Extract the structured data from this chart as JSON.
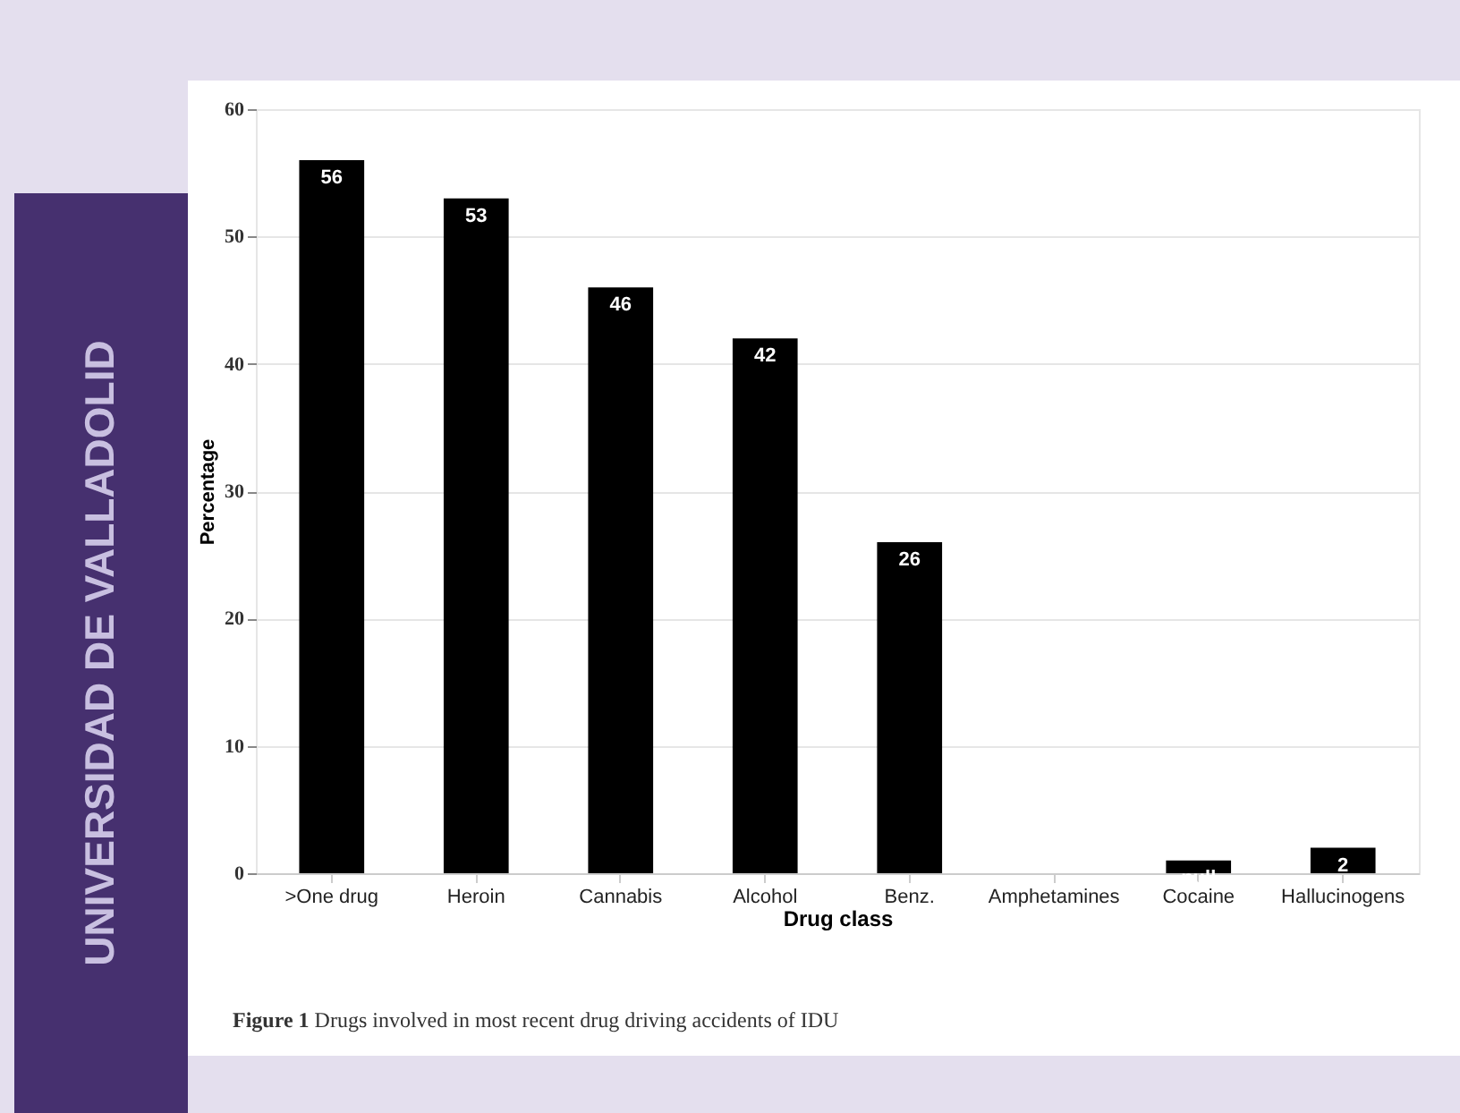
{
  "chart_data": {
    "type": "bar",
    "xlabel": "Drug class",
    "ylabel": "Percentage",
    "categories": [
      ">One drug",
      "Heroin",
      "Cannabis",
      "Alcohol",
      "Benz.",
      "Amphetamines",
      "Cocaine",
      "Hallucinogens"
    ],
    "values": [
      56,
      53,
      46,
      42,
      26,
      null,
      1,
      2
    ],
    "value_labels": [
      "56",
      "53",
      "46",
      "42",
      "26",
      null,
      null,
      "2"
    ],
    "color": "#000000",
    "ylim": [
      0,
      60
    ],
    "yticks": [
      0,
      10,
      20,
      30,
      40,
      50,
      60
    ],
    "grid": "y",
    "annotations": [
      "Figure 1 Drugs involved in most recent drug driving accidents of IDU",
      "UNIVERSIDAD DE VALLADOLID"
    ]
  }
}
